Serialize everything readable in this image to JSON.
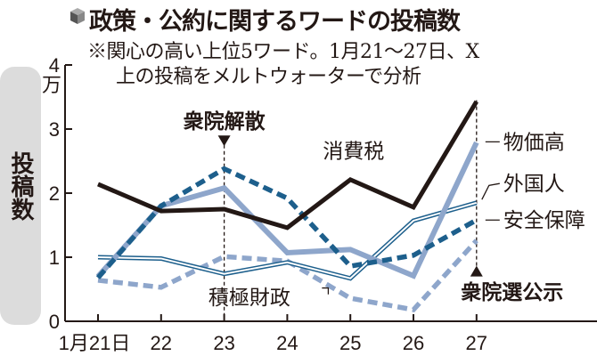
{
  "chart_data": {
    "type": "line",
    "title": "政策・公約に関するワードの投稿数",
    "subtitle_line1": "※関心の高い上位5ワード。1月21～27日、X",
    "subtitle_line2": "上の投稿をメルトウォーターで分析",
    "ylabel": "投稿数",
    "yunit": "万",
    "ylim": [
      0,
      4
    ],
    "yticks": [
      "0",
      "1",
      "2",
      "3",
      "4"
    ],
    "x": [
      "1月21日",
      "22",
      "23",
      "24",
      "25",
      "26",
      "27"
    ],
    "grid": false,
    "series": [
      {
        "name": "消費税",
        "color": "#231815",
        "style": "solid-thick",
        "values": [
          2.14,
          1.72,
          1.75,
          1.46,
          2.21,
          1.78,
          3.43
        ]
      },
      {
        "name": "物価高",
        "color": "#8ea6cb",
        "style": "solid-thick",
        "values": [
          0.7,
          1.8,
          2.08,
          1.07,
          1.12,
          0.71,
          2.79
        ]
      },
      {
        "name": "外国人",
        "color": "#1d5f8c",
        "style": "double",
        "values": [
          1.0,
          0.98,
          0.74,
          0.92,
          0.67,
          1.57,
          1.85
        ]
      },
      {
        "name": "安全保障",
        "color": "#1d5f8c",
        "style": "dashed",
        "values": [
          0.68,
          1.8,
          2.38,
          1.92,
          0.86,
          1.03,
          1.58
        ]
      },
      {
        "name": "積極財政",
        "color": "#8ea6cb",
        "style": "dashed",
        "values": [
          0.64,
          0.53,
          1.01,
          0.94,
          0.36,
          0.18,
          1.26
        ]
      }
    ],
    "annotations": [
      {
        "text": "衆院解散",
        "x": "23",
        "marker": "down-triangle"
      },
      {
        "text": "衆院選公示",
        "x": "27",
        "marker": "up-triangle"
      }
    ]
  }
}
